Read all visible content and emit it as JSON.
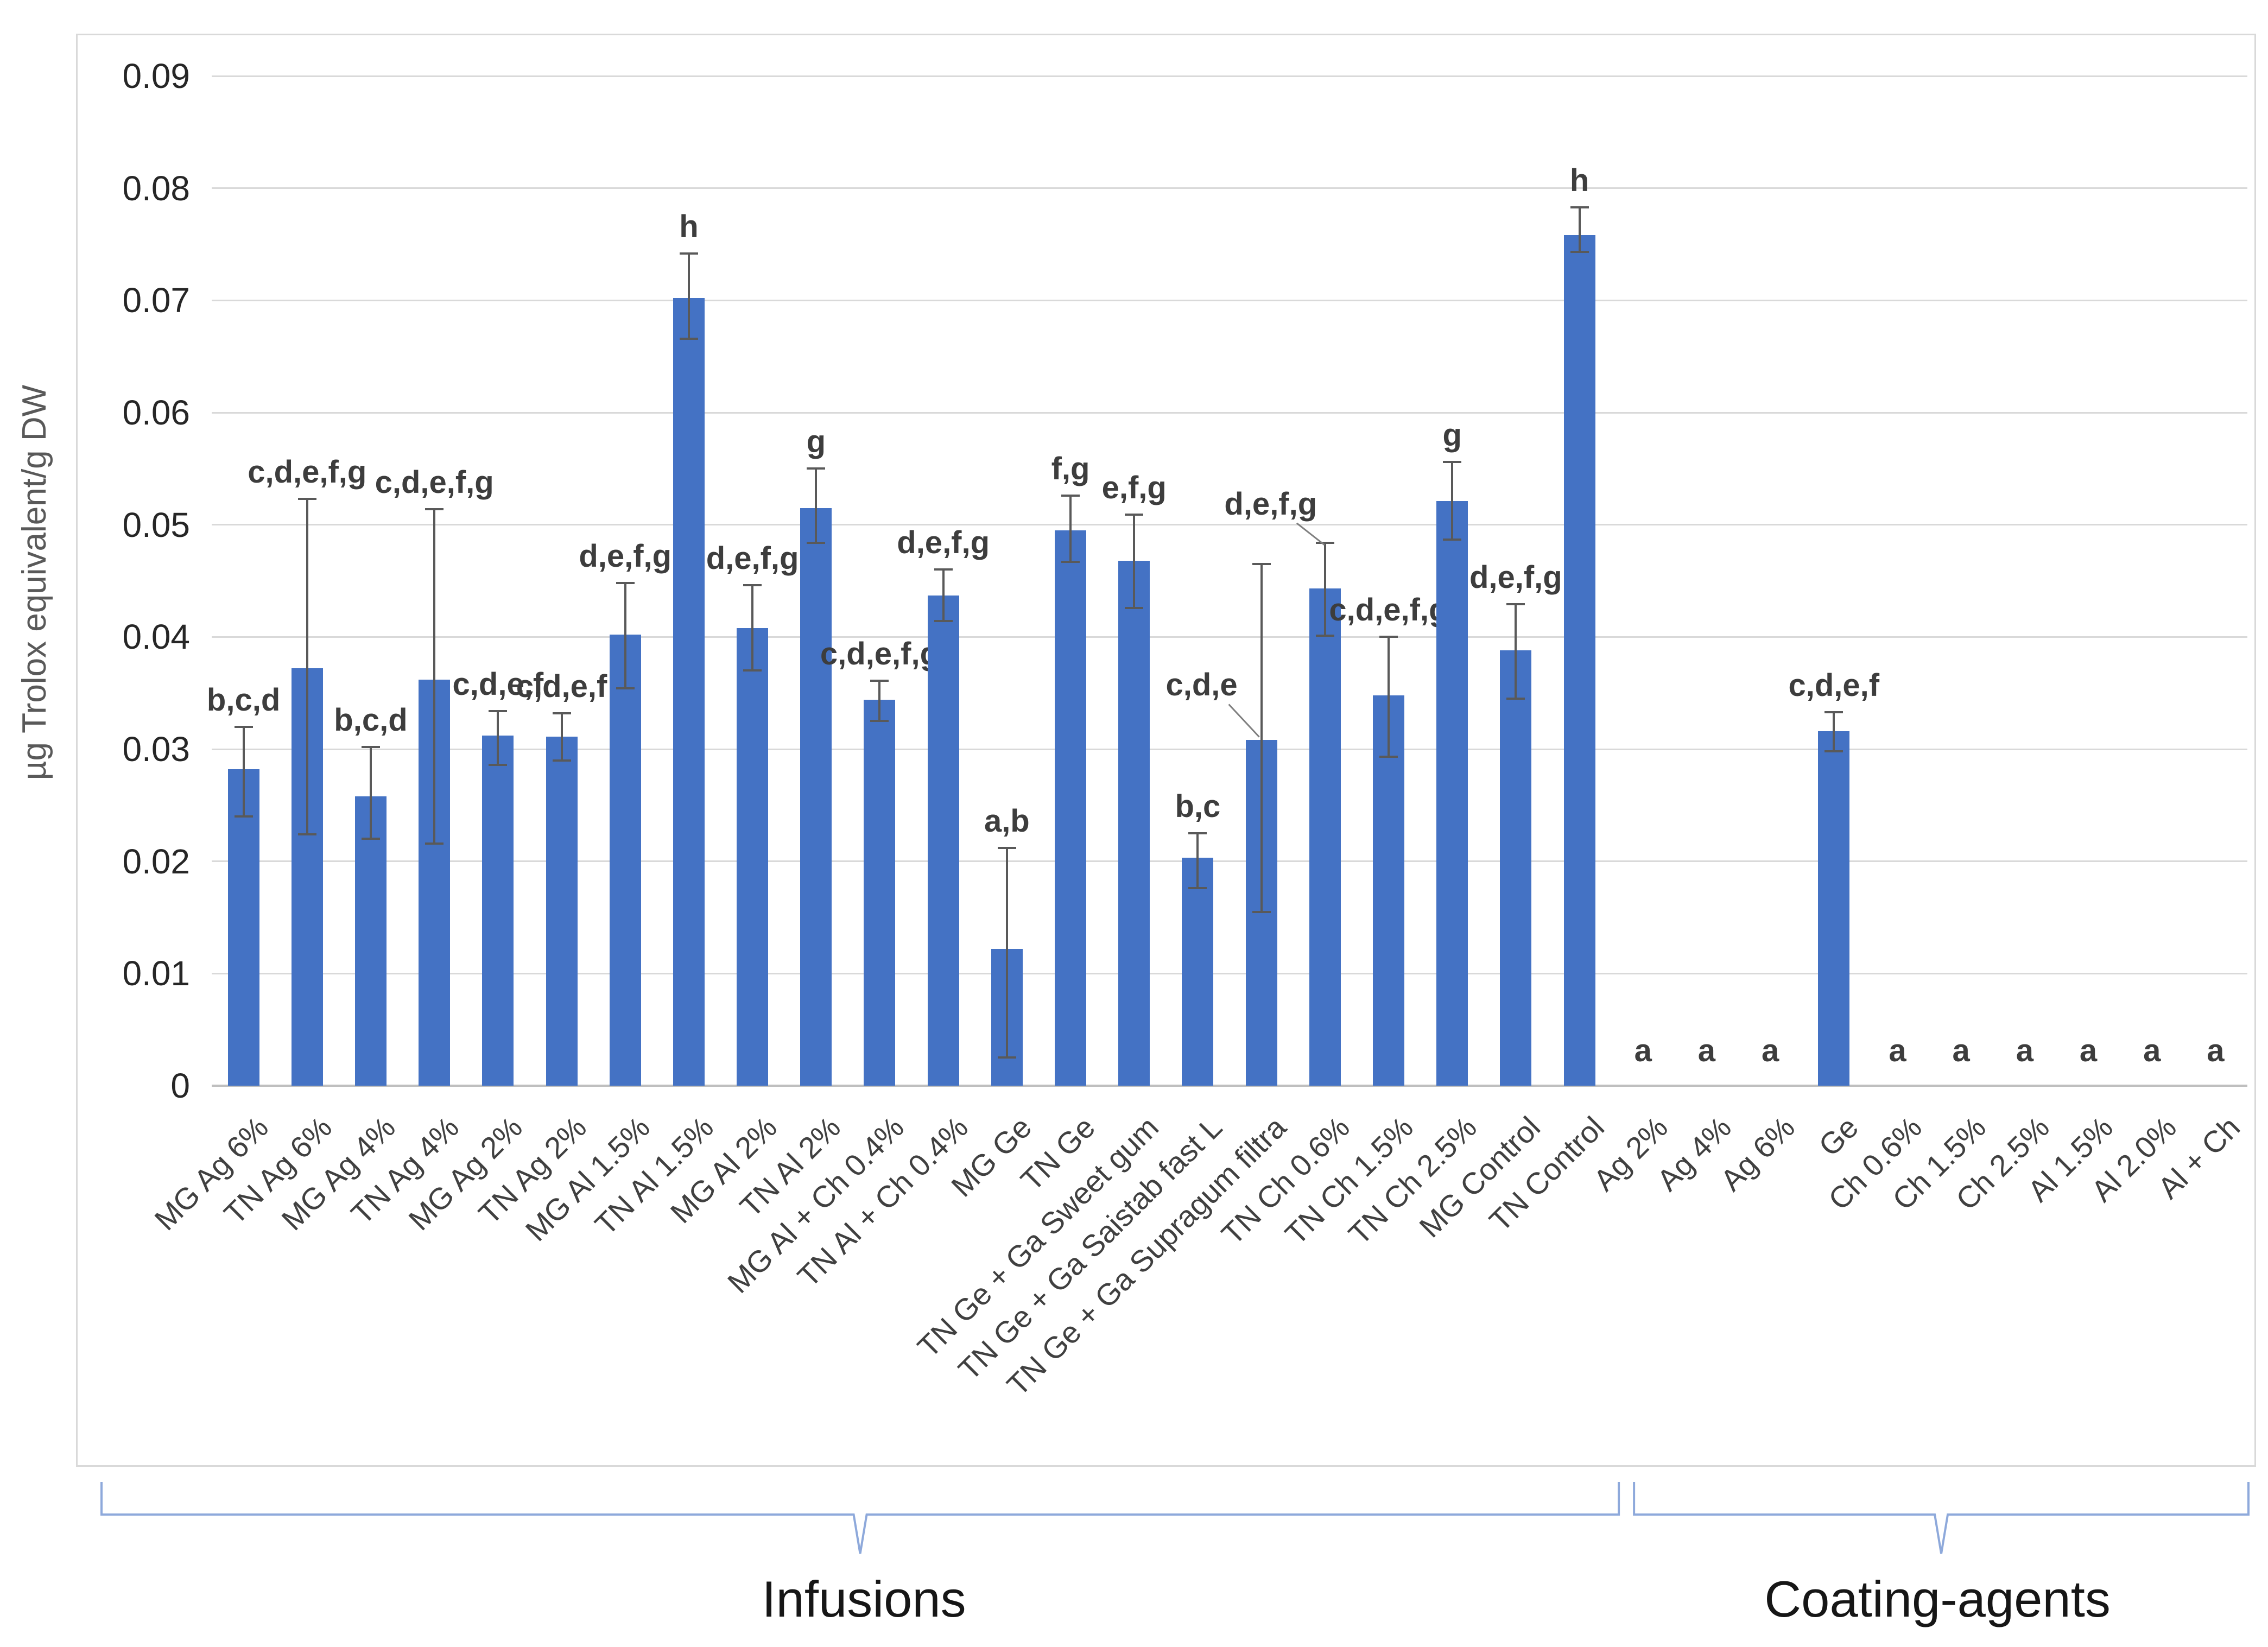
{
  "figure": {
    "y_axis_title": "µg Trolox equivalent/g DW",
    "ytick_labels": [
      "0",
      "0.01",
      "0.02",
      "0.03",
      "0.04",
      "0.05",
      "0.06",
      "0.07",
      "0.08",
      "0.09"
    ]
  },
  "chart_data": {
    "type": "bar",
    "title": "",
    "xlabel": "",
    "ylabel": "µg Trolox equivalent/g DW",
    "ylim": [
      0,
      0.09
    ],
    "ytick_step": 0.01,
    "grid": true,
    "legend": "none",
    "bar_color": "#4472C4",
    "error_bar_color": "#595959",
    "gridline_color": "#D9D9D9",
    "brace_color": "#8EA9DB",
    "categories": [
      "MG Ag 6%",
      "TN Ag 6%",
      "MG Ag 4%",
      "TN Ag 4%",
      "MG Ag 2%",
      "TN Ag 2%",
      "MG Al 1.5%",
      "TN Al 1.5%",
      "MG Al 2%",
      "TN Al 2%",
      "MG Al + Ch 0.4%",
      "TN Al + Ch 0.4%",
      "MG Ge",
      "TN Ge",
      "TN Ge + Ga Sweet gum",
      "TN Ge + Ga Saistab fast L",
      "TN Ge + Ga Supragum filtra",
      "TN Ch 0.6%",
      "TN Ch 1.5%",
      "TN Ch 2.5%",
      "MG Control",
      "TN Control",
      "Ag 2%",
      "Ag 4%",
      "Ag 6%",
      "Ge",
      "Ch 0.6%",
      "Ch 1.5%",
      "Ch 2.5%",
      "Al 1.5%",
      "Al 2.0%",
      "Al + Ch"
    ],
    "values": [
      0.0282,
      0.0372,
      0.0258,
      0.0362,
      0.0312,
      0.0311,
      0.0402,
      0.0702,
      0.0408,
      0.0515,
      0.0344,
      0.0437,
      0.0122,
      0.0495,
      0.0468,
      0.0203,
      0.0308,
      0.0443,
      0.0348,
      0.0521,
      0.0388,
      0.0758,
      0,
      0,
      0,
      0.0316,
      0,
      0,
      0,
      0,
      0,
      0
    ],
    "error_up": [
      0.0038,
      0.0151,
      0.0044,
      0.0152,
      0.0022,
      0.0021,
      0.0046,
      0.004,
      0.0038,
      0.0035,
      0.0017,
      0.0023,
      0.009,
      0.0031,
      0.0041,
      0.0022,
      0.0157,
      0.0041,
      0.0052,
      0.0035,
      0.0041,
      0.0025,
      0,
      0,
      0,
      0.0017,
      0,
      0,
      0,
      0,
      0,
      0
    ],
    "error_down": [
      0.0042,
      0.0148,
      0.0038,
      0.0146,
      0.0026,
      0.0021,
      0.0048,
      0.0036,
      0.0038,
      0.0031,
      0.0019,
      0.0023,
      0.0097,
      0.0028,
      0.0042,
      0.0027,
      0.0153,
      0.0042,
      0.0055,
      0.0034,
      0.0043,
      0.0015,
      0,
      0,
      0,
      0.0018,
      0,
      0,
      0,
      0,
      0,
      0
    ],
    "sig_letters": [
      "b,c,d",
      "c,d,e,f,g",
      "b,c,d",
      "c,d,e,f,g",
      "c,d,e,f",
      "c,d,e,f",
      "d,e,f,g",
      "h",
      "d,e,f,g",
      "g",
      "c,d,e,f,g",
      "d,e,f,g",
      "a,b",
      "f,g",
      "e,f,g",
      "b,c",
      "c,d,e",
      "d,e,f,g",
      "c,d,e,f,g",
      "g",
      "d,e,f,g",
      "h",
      "a",
      "a",
      "a",
      "c,d,e,f",
      "a",
      "a",
      "a",
      "a",
      "a",
      "a"
    ],
    "callout_lines": [
      {
        "category": "TN Ge + Ga Supragum filtra",
        "letters": "c,d,e",
        "points_to": "bar-top"
      },
      {
        "category": "TN Ch 0.6%",
        "letters": "d,e,f,g",
        "points_to": "error-top"
      }
    ],
    "groups": [
      {
        "label": "Infusions",
        "start_index": 0,
        "end_index": 21
      },
      {
        "label": "Coating-agents",
        "start_index": 22,
        "end_index": 31
      }
    ]
  }
}
